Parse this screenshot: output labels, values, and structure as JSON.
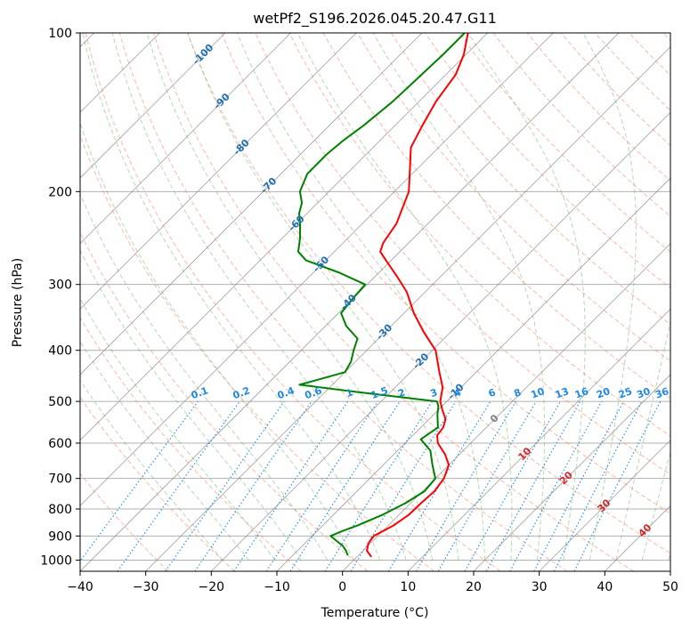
{
  "chart_data": {
    "type": "line",
    "subtype": "skew-t log-p",
    "title": "wetPf2_S196.2026.045.20.47.G11",
    "xlabel": "Temperature (°C)",
    "ylabel": "Pressure (hPa)",
    "xlim": [
      -40,
      50
    ],
    "ylim": [
      1050,
      100
    ],
    "x_ticks": [
      -40,
      -30,
      -20,
      -10,
      0,
      10,
      20,
      30,
      40,
      50
    ],
    "y_ticks": [
      100,
      200,
      300,
      400,
      500,
      600,
      700,
      800,
      900,
      1000
    ],
    "grid": true,
    "series": [
      {
        "name": "Temperature",
        "color": "#ff0000",
        "points": [
          {
            "p": 986,
            "t": 2.2
          },
          {
            "p": 960,
            "t": 0.6
          },
          {
            "p": 930,
            "t": -0.3
          },
          {
            "p": 900,
            "t": -0.6
          },
          {
            "p": 860,
            "t": 0.8
          },
          {
            "p": 820,
            "t": 1.5
          },
          {
            "p": 780,
            "t": 1.6
          },
          {
            "p": 740,
            "t": 1.8
          },
          {
            "p": 700,
            "t": 1.3
          },
          {
            "p": 660,
            "t": 0.0
          },
          {
            "p": 630,
            "t": -2.2
          },
          {
            "p": 600,
            "t": -5.0
          },
          {
            "p": 580,
            "t": -6.3
          },
          {
            "p": 560,
            "t": -6.6
          },
          {
            "p": 540,
            "t": -7.5
          },
          {
            "p": 520,
            "t": -9.3
          },
          {
            "p": 500,
            "t": -11.0
          },
          {
            "p": 470,
            "t": -12.8
          },
          {
            "p": 440,
            "t": -15.6
          },
          {
            "p": 400,
            "t": -19.5
          },
          {
            "p": 370,
            "t": -24.0
          },
          {
            "p": 340,
            "t": -28.5
          },
          {
            "p": 310,
            "t": -32.8
          },
          {
            "p": 290,
            "t": -36.6
          },
          {
            "p": 270,
            "t": -40.8
          },
          {
            "p": 260,
            "t": -43.0
          },
          {
            "p": 250,
            "t": -43.9
          },
          {
            "p": 230,
            "t": -44.8
          },
          {
            "p": 200,
            "t": -47.8
          },
          {
            "p": 180,
            "t": -51.3
          },
          {
            "p": 165,
            "t": -54.2
          },
          {
            "p": 150,
            "t": -55.8
          },
          {
            "p": 135,
            "t": -57.4
          },
          {
            "p": 120,
            "t": -58.5
          },
          {
            "p": 110,
            "t": -60.3
          },
          {
            "p": 100,
            "t": -63.0
          }
        ]
      },
      {
        "name": "Dewpoint",
        "color": "#008000",
        "points": [
          {
            "p": 980,
            "t": -1.6
          },
          {
            "p": 960,
            "t": -2.6
          },
          {
            "p": 940,
            "t": -3.8
          },
          {
            "p": 920,
            "t": -5.5
          },
          {
            "p": 900,
            "t": -7.2
          },
          {
            "p": 880,
            "t": -6.1
          },
          {
            "p": 860,
            "t": -4.7
          },
          {
            "p": 820,
            "t": -2.5
          },
          {
            "p": 780,
            "t": -0.8
          },
          {
            "p": 740,
            "t": 0.3
          },
          {
            "p": 700,
            "t": 0.0
          },
          {
            "p": 660,
            "t": -2.5
          },
          {
            "p": 620,
            "t": -5.0
          },
          {
            "p": 590,
            "t": -8.2
          },
          {
            "p": 560,
            "t": -7.4
          },
          {
            "p": 530,
            "t": -9.4
          },
          {
            "p": 510,
            "t": -10.6
          },
          {
            "p": 500,
            "t": -11.5
          },
          {
            "p": 480,
            "t": -25.0
          },
          {
            "p": 465,
            "t": -35.0
          },
          {
            "p": 455,
            "t": -33.0
          },
          {
            "p": 440,
            "t": -30.0
          },
          {
            "p": 420,
            "t": -30.7
          },
          {
            "p": 400,
            "t": -32.0
          },
          {
            "p": 380,
            "t": -33.2
          },
          {
            "p": 360,
            "t": -36.8
          },
          {
            "p": 340,
            "t": -39.6
          },
          {
            "p": 320,
            "t": -40.0
          },
          {
            "p": 300,
            "t": -40.3
          },
          {
            "p": 285,
            "t": -46.0
          },
          {
            "p": 270,
            "t": -53.0
          },
          {
            "p": 260,
            "t": -55.5
          },
          {
            "p": 245,
            "t": -57.3
          },
          {
            "p": 230,
            "t": -59.5
          },
          {
            "p": 220,
            "t": -61.2
          },
          {
            "p": 210,
            "t": -62.4
          },
          {
            "p": 200,
            "t": -64.4
          },
          {
            "p": 185,
            "t": -66.0
          },
          {
            "p": 170,
            "t": -66.0
          },
          {
            "p": 160,
            "t": -65.6
          },
          {
            "p": 150,
            "t": -64.8
          },
          {
            "p": 135,
            "t": -64.0
          },
          {
            "p": 120,
            "t": -63.7
          },
          {
            "p": 110,
            "t": -63.5
          },
          {
            "p": 100,
            "t": -63.5
          }
        ]
      }
    ],
    "isotherm_labels": [
      {
        "value": "-100",
        "p": 110
      },
      {
        "value": "-90",
        "p": 135
      },
      {
        "value": "-80",
        "p": 165
      },
      {
        "value": "-70",
        "p": 195
      },
      {
        "value": "-60",
        "p": 230
      },
      {
        "value": "-50",
        "p": 275
      },
      {
        "value": "-40",
        "p": 325
      },
      {
        "value": "-30",
        "p": 370
      },
      {
        "value": "-20",
        "p": 420
      },
      {
        "value": "-10",
        "p": 480
      },
      {
        "value": "0",
        "p": 540
      },
      {
        "value": "10",
        "p": 630
      },
      {
        "value": "20",
        "p": 700
      },
      {
        "value": "30",
        "p": 790
      },
      {
        "value": "40",
        "p": 880
      }
    ],
    "mixing_ratio_labels": [
      "0.1",
      "0.2",
      "0.4",
      "0.6",
      "1",
      "1.5",
      "2",
      "3",
      "4",
      "6",
      "8",
      "10",
      "13",
      "16",
      "20",
      "25",
      "30",
      "36"
    ],
    "colors": {
      "grid": "#b0b0b0",
      "isotherm": "#808080",
      "dry_adiabat": "#fa8060",
      "moist_adiabat": "#5aa85a",
      "mixing_ratio": "#1e88e5",
      "isotherm_label": "#1f6fb4",
      "isotherm_label_warm": "#d62728",
      "isotherm_label_zero": "#808080",
      "mixing_label": "#1e88e5",
      "faint_brown": "#d2b48c"
    }
  }
}
